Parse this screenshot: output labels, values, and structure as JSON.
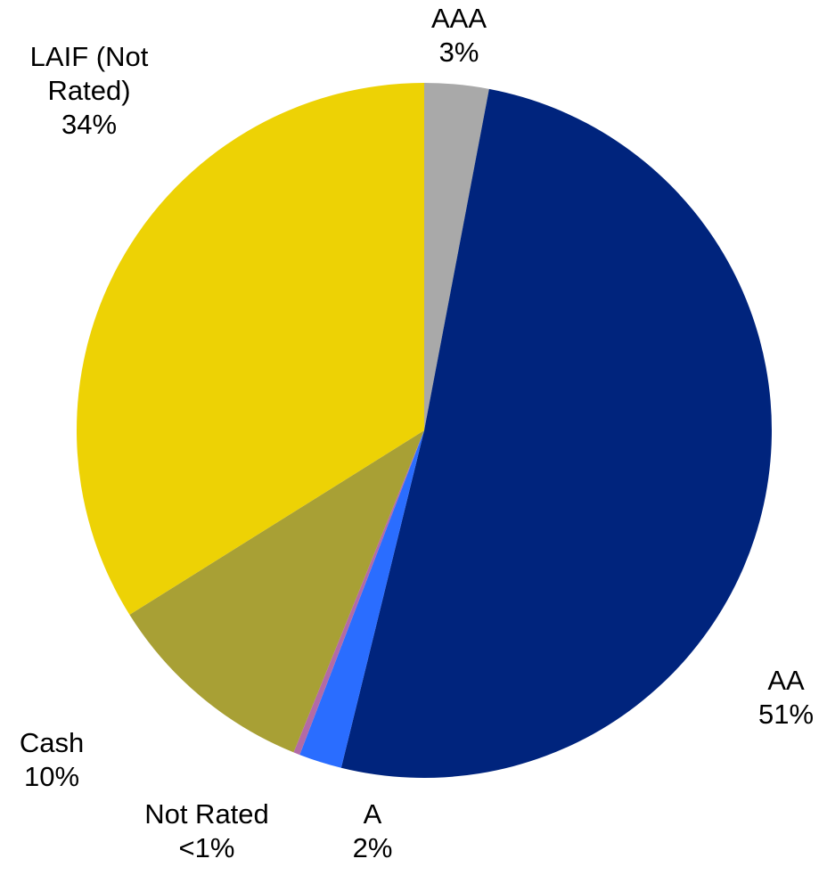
{
  "chart_data": {
    "type": "pie",
    "categories": [
      "AAA",
      "AA",
      "A",
      "Not Rated",
      "Cash",
      "LAIF (Not Rated)"
    ],
    "values": [
      3,
      51,
      2,
      0.3,
      10,
      34
    ],
    "value_labels": [
      "3%",
      "51%",
      "2%",
      "<1%",
      "10%",
      "34%"
    ],
    "colors": [
      "#a9a9a9",
      "#00247d",
      "#2a6dff",
      "#b36aa6",
      "#a8a035",
      "#edd205"
    ]
  }
}
